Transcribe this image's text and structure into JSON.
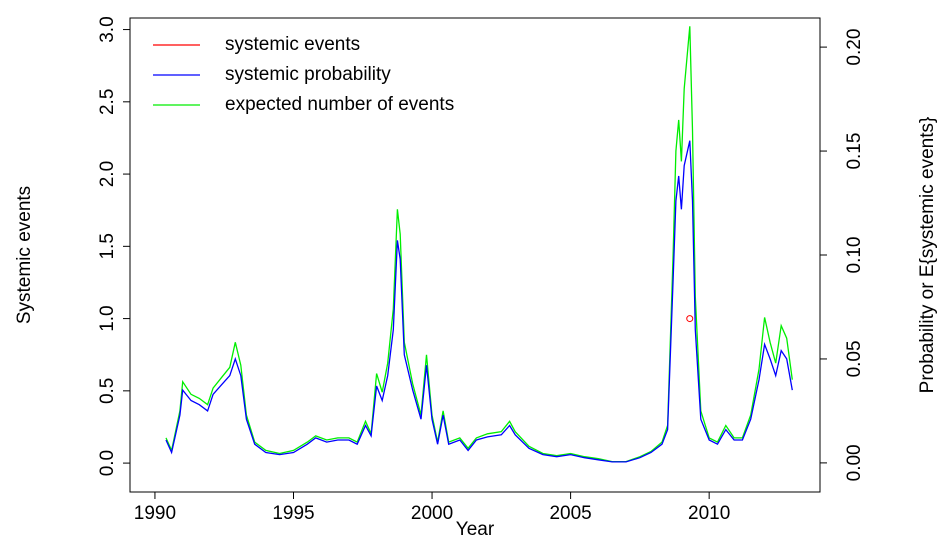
{
  "chart_data": {
    "type": "line",
    "xlabel": "Year",
    "ylabel": "Systemic events",
    "y2label": "Probability or E{systemic events}",
    "xlim": [
      1989.1,
      2014
    ],
    "ylim": [
      -0.2,
      3.08
    ],
    "y2lim": [
      -0.014,
      0.214
    ],
    "xticks": [
      1990,
      1995,
      2000,
      2005,
      2010
    ],
    "yticks": [
      {
        "value": 0,
        "label": "0.0"
      },
      {
        "value": 0.5,
        "label": "0.5"
      },
      {
        "value": 1,
        "label": "1.0"
      },
      {
        "value": 1.5,
        "label": "1.5"
      },
      {
        "value": 2,
        "label": "2.0"
      },
      {
        "value": 2.5,
        "label": "2.5"
      },
      {
        "value": 3,
        "label": "3.0"
      }
    ],
    "y2ticks": [
      {
        "value": 0,
        "label": "0.00"
      },
      {
        "value": 0.05,
        "label": "0.05"
      },
      {
        "value": 0.1,
        "label": "0.10"
      },
      {
        "value": 0.15,
        "label": "0.15"
      },
      {
        "value": 0.2,
        "label": "0.20"
      }
    ],
    "legend": "top-left",
    "x": [
      1990.4,
      1990.6,
      1990.9,
      1991.0,
      1991.3,
      1991.6,
      1991.9,
      1992.1,
      1992.4,
      1992.7,
      1992.9,
      1993.1,
      1993.3,
      1993.6,
      1994.0,
      1994.5,
      1995.0,
      1995.5,
      1995.8,
      1996.2,
      1996.6,
      1997.0,
      1997.3,
      1997.6,
      1997.8,
      1998.0,
      1998.2,
      1998.4,
      1998.6,
      1998.75,
      1998.85,
      1999.0,
      1999.3,
      1999.6,
      1999.8,
      2000.0,
      2000.2,
      2000.4,
      2000.6,
      2001.0,
      2001.3,
      2001.6,
      2002.0,
      2002.5,
      2002.8,
      2003.0,
      2003.5,
      2004.0,
      2004.5,
      2005.0,
      2005.5,
      2006.0,
      2006.5,
      2007.0,
      2007.5,
      2007.9,
      2008.3,
      2008.5,
      2008.7,
      2008.8,
      2008.9,
      2009.0,
      2009.1,
      2009.3,
      2009.4,
      2009.5,
      2009.7,
      2010.0,
      2010.3,
      2010.6,
      2010.9,
      2011.2,
      2011.5,
      2011.8,
      2012.0,
      2012.2,
      2012.4,
      2012.6,
      2012.8,
      2013.0
    ],
    "series": [
      {
        "name": "systemic events",
        "color": "#ff0000",
        "axis": "y",
        "kind": "points",
        "x": [
          2009.3
        ],
        "values": [
          1
        ]
      },
      {
        "name": "systemic probability",
        "color": "#0000ff",
        "axis": "y2",
        "kind": "line",
        "values": [
          0.011,
          0.005,
          0.023,
          0.035,
          0.03,
          0.028,
          0.025,
          0.033,
          0.0375,
          0.042,
          0.05,
          0.042,
          0.021,
          0.009,
          0.005,
          0.004,
          0.005,
          0.009,
          0.012,
          0.01,
          0.011,
          0.011,
          0.009,
          0.018,
          0.013,
          0.037,
          0.03,
          0.042,
          0.064,
          0.107,
          0.098,
          0.052,
          0.035,
          0.021,
          0.047,
          0.021,
          0.009,
          0.023,
          0.009,
          0.011,
          0.006,
          0.011,
          0.0125,
          0.0135,
          0.018,
          0.0135,
          0.007,
          0.004,
          0.003,
          0.004,
          0.0025,
          0.0015,
          0.0005,
          0.0005,
          0.0025,
          0.005,
          0.009,
          0.016,
          0.088,
          0.126,
          0.138,
          0.122,
          0.143,
          0.155,
          0.126,
          0.064,
          0.021,
          0.011,
          0.009,
          0.016,
          0.011,
          0.011,
          0.021,
          0.04,
          0.057,
          0.05,
          0.042,
          0.054,
          0.05,
          0.035
        ]
      },
      {
        "name": "expected number of events",
        "color": "#00ee00",
        "axis": "y2",
        "kind": "line",
        "values": [
          0.012,
          0.006,
          0.025,
          0.039,
          0.033,
          0.031,
          0.028,
          0.036,
          0.041,
          0.046,
          0.058,
          0.047,
          0.023,
          0.01,
          0.006,
          0.0045,
          0.006,
          0.01,
          0.013,
          0.011,
          0.012,
          0.012,
          0.01,
          0.02,
          0.014,
          0.043,
          0.034,
          0.048,
          0.074,
          0.122,
          0.11,
          0.058,
          0.038,
          0.023,
          0.052,
          0.023,
          0.01,
          0.025,
          0.01,
          0.012,
          0.007,
          0.012,
          0.014,
          0.015,
          0.02,
          0.015,
          0.008,
          0.0045,
          0.0035,
          0.0045,
          0.003,
          0.002,
          0.0006,
          0.0006,
          0.003,
          0.0055,
          0.01,
          0.018,
          0.1,
          0.15,
          0.165,
          0.145,
          0.18,
          0.21,
          0.16,
          0.08,
          0.025,
          0.012,
          0.01,
          0.018,
          0.012,
          0.012,
          0.023,
          0.045,
          0.07,
          0.058,
          0.048,
          0.066,
          0.06,
          0.04
        ]
      }
    ]
  }
}
